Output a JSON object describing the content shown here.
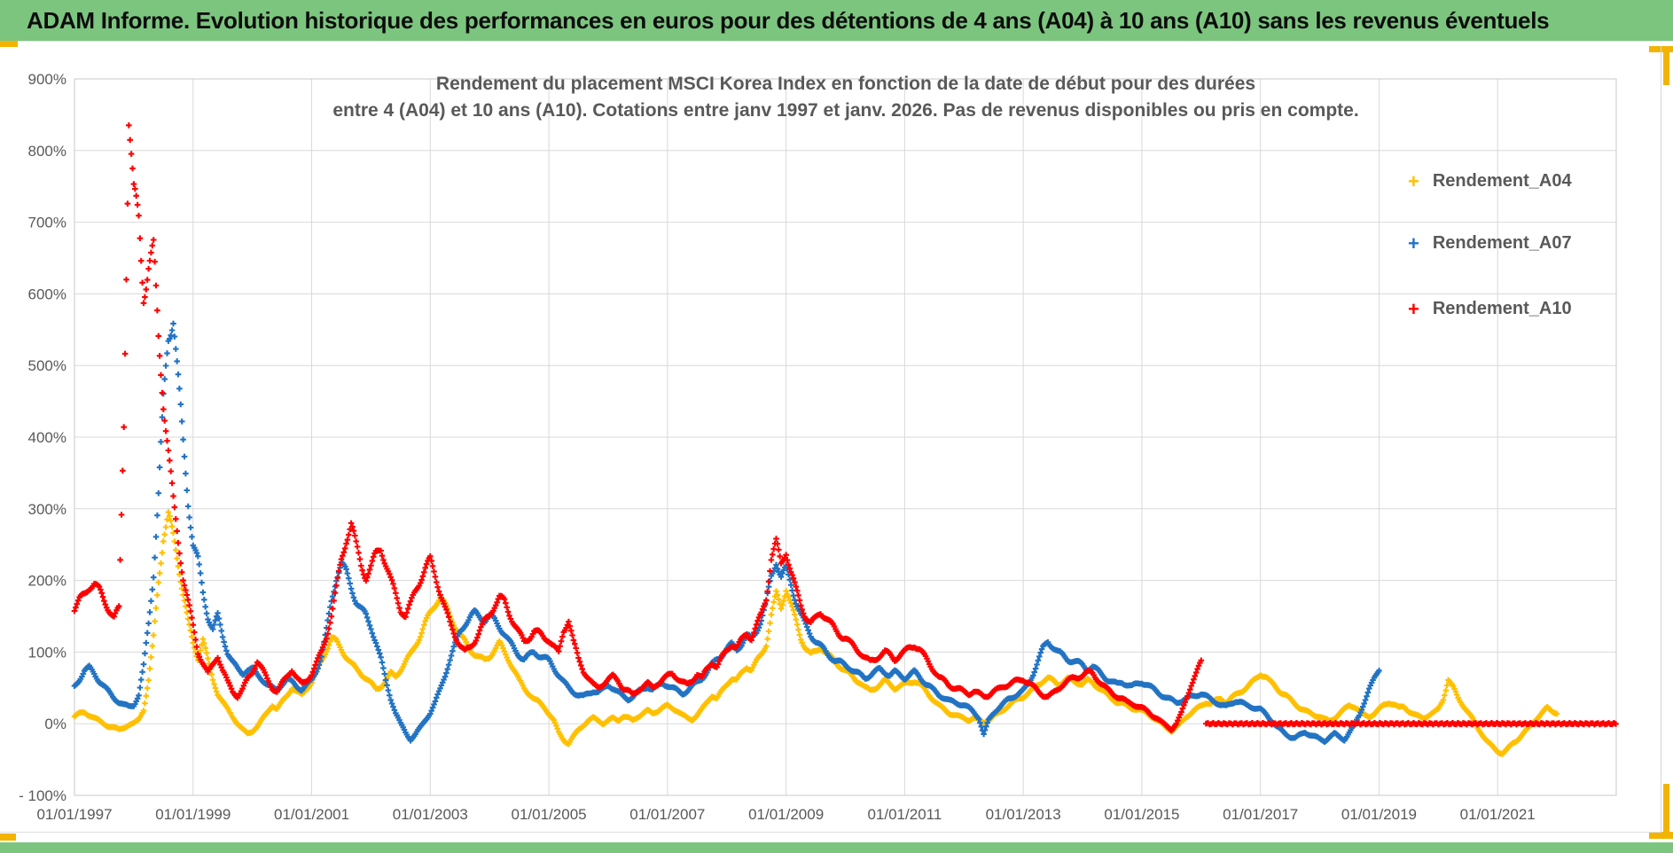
{
  "header": {
    "title": "ADAM Informe. Evolution historique des performances en euros pour des détentions de 4 ans (A04) à 10 ans (A10) sans les revenus éventuels"
  },
  "chart": {
    "title_line1": "Rendement du placement MSCI Korea Index en fonction de la date de début pour des durées",
    "title_line2": "entre 4 (A04) et 10 ans (A10). Cotations entre janv 1997 et janv. 2026. Pas de revenus disponibles ou pris en compte.",
    "marker_glyph": "+",
    "legend": [
      {
        "label": "Rendement_A04",
        "color": "#FFC000"
      },
      {
        "label": "Rendement_A07",
        "color": "#2273C3"
      },
      {
        "label": "Rendement_A10",
        "color": "#FF0000"
      }
    ]
  },
  "colors": {
    "header_bg": "#7CC57F",
    "accent_orange": "#F2B400",
    "grid": "#D9D9D9",
    "axis_text": "#595959"
  },
  "chart_data": {
    "type": "scatter",
    "marker": "plus",
    "grid": true,
    "legend_position": "right",
    "x_axis": {
      "start_year": 1997,
      "right_edge_year": 2023,
      "tick_interval_years": 2,
      "ticks": [
        "01/01/1997",
        "01/01/1999",
        "01/01/2001",
        "01/01/2003",
        "01/01/2005",
        "01/01/2007",
        "01/01/2009",
        "01/01/2011",
        "01/01/2013",
        "01/01/2015",
        "01/01/2017",
        "01/01/2019",
        "01/01/2021"
      ]
    },
    "y_axis": {
      "min": -100,
      "max": 900,
      "step": 100,
      "unit": "%",
      "ticks": [
        "900%",
        "800%",
        "700%",
        "600%",
        "500%",
        "400%",
        "300%",
        "200%",
        "100%",
        "0%",
        "- 100%"
      ]
    },
    "series": [
      {
        "name": "Rendement_A04",
        "color": "#FFC000",
        "start_month": "1997-01",
        "monthly_values_pct": [
          10,
          14,
          16,
          12,
          8,
          4,
          0,
          -4,
          -6,
          -8,
          -5,
          -2,
          0,
          6,
          20,
          60,
          120,
          200,
          260,
          290,
          262,
          225,
          182,
          142,
          112,
          92,
          118,
          88,
          62,
          42,
          30,
          20,
          10,
          0,
          -8,
          -14,
          -10,
          -4,
          6,
          16,
          26,
          20,
          30,
          40,
          50,
          44,
          40,
          50,
          58,
          72,
          88,
          104,
          120,
          114,
          104,
          94,
          84,
          76,
          70,
          64,
          56,
          48,
          52,
          60,
          70,
          66,
          76,
          86,
          96,
          110,
          124,
          140,
          154,
          168,
          178,
          164,
          150,
          138,
          124,
          114,
          104,
          98,
          92,
          88,
          94,
          104,
          112,
          100,
          88,
          74,
          60,
          50,
          42,
          34,
          30,
          24,
          14,
          4,
          -12,
          -22,
          -28,
          -18,
          -8,
          -2,
          4,
          8,
          5,
          0,
          4,
          8,
          5,
          10,
          8,
          5,
          10,
          14,
          18,
          15,
          18,
          22,
          25,
          22,
          18,
          12,
          8,
          6,
          12,
          20,
          30,
          40,
          35,
          45,
          55,
          64,
          60,
          70,
          80,
          76,
          86,
          96,
          112,
          152,
          180,
          162,
          190,
          166,
          142,
          120,
          106,
          96,
          100,
          108,
          100,
          92,
          86,
          80,
          74,
          68,
          62,
          58,
          50,
          46,
          50,
          55,
          60,
          55,
          50,
          52,
          55,
          58,
          60,
          55,
          48,
          40,
          32,
          25,
          20,
          15,
          12,
          10,
          8,
          5,
          8,
          5,
          2,
          5,
          10,
          15,
          20,
          25,
          30,
          35,
          38,
          42,
          48,
          55,
          60,
          63,
          60,
          56,
          58,
          62,
          60,
          58,
          55,
          60,
          58,
          52,
          46,
          40,
          35,
          30,
          28,
          25,
          22,
          20,
          18,
          15,
          10,
          5,
          0,
          -5,
          -10,
          -5,
          2,
          10,
          15,
          20,
          25,
          30,
          28,
          32,
          35,
          30,
          35,
          40,
          45,
          50,
          55,
          62,
          70,
          66,
          58,
          52,
          45,
          40,
          34,
          28,
          22,
          18,
          15,
          12,
          10,
          6,
          4,
          8,
          14,
          20,
          26,
          24,
          18,
          12,
          10,
          14,
          20,
          26,
          30,
          27,
          22,
          24,
          18,
          13,
          10,
          8,
          12,
          15,
          20,
          35,
          62,
          50,
          36,
          26,
          16,
          6,
          -6,
          -16,
          -26,
          -33,
          -38,
          -41,
          -36,
          -28,
          -22,
          -15,
          -8,
          0,
          8,
          15,
          22,
          18,
          15
        ]
      },
      {
        "name": "Rendement_A07",
        "color": "#2273C3",
        "start_month": "1997-01",
        "monthly_values_pct": [
          52,
          62,
          74,
          78,
          70,
          60,
          52,
          44,
          36,
          30,
          26,
          24,
          26,
          40,
          80,
          140,
          210,
          320,
          450,
          540,
          570,
          480,
          390,
          310,
          252,
          228,
          182,
          150,
          132,
          150,
          122,
          100,
          86,
          76,
          70,
          76,
          76,
          68,
          62,
          55,
          50,
          46,
          56,
          62,
          58,
          52,
          48,
          54,
          60,
          75,
          95,
          130,
          170,
          205,
          225,
          210,
          190,
          172,
          160,
          150,
          135,
          115,
          90,
          60,
          35,
          15,
          0,
          -12,
          -22,
          -15,
          -5,
          5,
          15,
          30,
          48,
          68,
          90,
          110,
          128,
          140,
          148,
          154,
          150,
          145,
          150,
          144,
          136,
          126,
          114,
          104,
          96,
          90,
          95,
          100,
          96,
          92,
          88,
          78,
          68,
          58,
          50,
          44,
          40,
          38,
          42,
          46,
          44,
          48,
          54,
          50,
          44,
          38,
          34,
          38,
          44,
          48,
          52,
          48,
          52,
          56,
          54,
          50,
          46,
          42,
          46,
          52,
          58,
          64,
          72,
          82,
          90,
          96,
          104,
          110,
          104,
          112,
          122,
          118,
          130,
          146,
          168,
          205,
          228,
          205,
          215,
          195,
          172,
          152,
          136,
          124,
          116,
          108,
          100,
          94,
          88,
          85,
          82,
          78,
          72,
          68,
          64,
          68,
          72,
          76,
          72,
          68,
          72,
          68,
          64,
          68,
          72,
          66,
          58,
          52,
          46,
          40,
          36,
          32,
          30,
          28,
          26,
          22,
          16,
          8,
          -15,
          5,
          15,
          22,
          28,
          34,
          38,
          42,
          46,
          55,
          70,
          88,
          105,
          115,
          108,
          100,
          95,
          90,
          88,
          85,
          82,
          76,
          80,
          74,
          68,
          62,
          58,
          55,
          58,
          55,
          52,
          55,
          58,
          55,
          50,
          45,
          40,
          36,
          33,
          30,
          32,
          35,
          38,
          40,
          42,
          38,
          34,
          30,
          26,
          24,
          28,
          32,
          30,
          26,
          24,
          22,
          20,
          14,
          6,
          -2,
          -8,
          -14,
          -18,
          -20,
          -16,
          -12,
          -15,
          -18,
          -22,
          -24,
          -18,
          -14,
          -19,
          -22,
          -12,
          -2,
          12,
          30,
          48,
          62,
          76
        ]
      },
      {
        "name": "Rendement_A10",
        "color": "#FF0000",
        "start_month": "1997-01",
        "flat_zero_from": "2016-02",
        "flat_zero_to": "2023-01",
        "flat_zero_value": 0,
        "monthly_values_pct": [
          160,
          172,
          180,
          192,
          196,
          186,
          172,
          160,
          148,
          160,
          420,
          850,
          740,
          700,
          600,
          640,
          660,
          540,
          450,
          380,
          310,
          255,
          205,
          170,
          135,
          100,
          85,
          70,
          82,
          95,
          75,
          58,
          45,
          38,
          48,
          62,
          72,
          88,
          76,
          62,
          50,
          45,
          56,
          66,
          76,
          64,
          55,
          60,
          70,
          85,
          100,
          122,
          152,
          188,
          228,
          258,
          280,
          248,
          222,
          205,
          218,
          236,
          246,
          224,
          200,
          180,
          160,
          150,
          166,
          186,
          202,
          216,
          228,
          208,
          184,
          160,
          140,
          124,
          110,
          100,
          106,
          116,
          130,
          142,
          152,
          166,
          176,
          170,
          154,
          140,
          126,
          114,
          120,
          130,
          126,
          120,
          118,
          108,
          98,
          130,
          146,
          114,
          90,
          74,
          64,
          54,
          50,
          56,
          62,
          66,
          60,
          50,
          46,
          40,
          46,
          52,
          56,
          50,
          56,
          62,
          66,
          70,
          64,
          58,
          54,
          60,
          70,
          64,
          76,
          86,
          80,
          92,
          102,
          112,
          106,
          116,
          126,
          120,
          136,
          152,
          176,
          232,
          252,
          222,
          242,
          212,
          186,
          166,
          150,
          140,
          146,
          156,
          150,
          140,
          130,
          124,
          120,
          112,
          106,
          100,
          92,
          86,
          90,
          96,
          100,
          96,
          90,
          96,
          100,
          106,
          110,
          104,
          94,
          84,
          74,
          64,
          60,
          54,
          50,
          48,
          45,
          42,
          45,
          42,
          38,
          40,
          45,
          48,
          52,
          55,
          58,
          60,
          62,
          58,
          52,
          45,
          40,
          38,
          42,
          48,
          55,
          60,
          63,
          65,
          68,
          72,
          70,
          62,
          55,
          48,
          42,
          38,
          35,
          30,
          28,
          25,
          22,
          18,
          12,
          8,
          2,
          -3,
          -8,
          0,
          15,
          35,
          55,
          70,
          86
        ]
      }
    ]
  }
}
